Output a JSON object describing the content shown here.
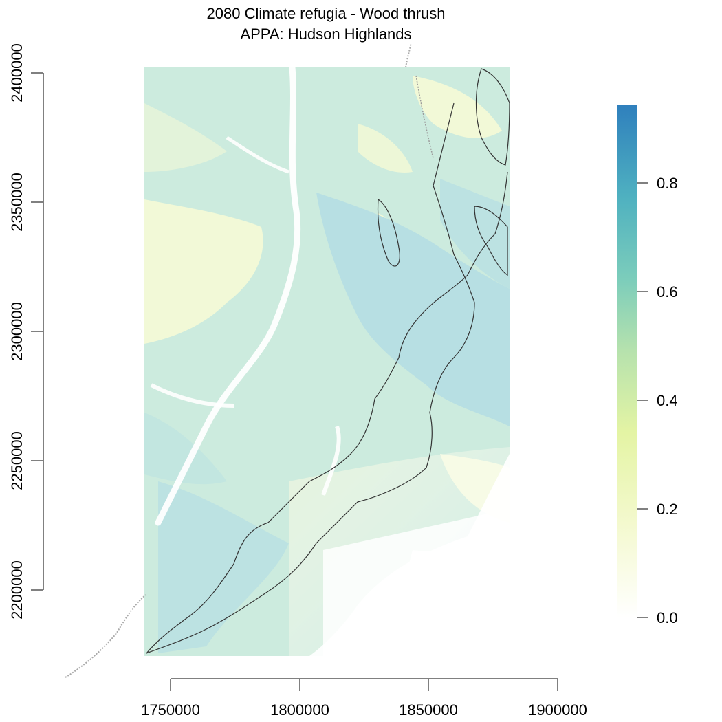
{
  "title": {
    "line1": "2080 Climate refugia - Wood thrush",
    "line2": "APPA: Hudson Highlands"
  },
  "map": {
    "x_axis": {
      "ticks": [
        "1750000",
        "1800000",
        "1850000",
        "1900000"
      ],
      "range": [
        1740000,
        1881000
      ]
    },
    "y_axis": {
      "ticks": [
        "2200000",
        "2250000",
        "2300000",
        "2350000",
        "2400000"
      ],
      "range": [
        2174000,
        2402000
      ]
    },
    "raster_layer": "climate refugia index",
    "overlays": [
      "APPA corridor boundary",
      "state boundary"
    ]
  },
  "legend": {
    "ticks": [
      "0.0",
      "0.2",
      "0.4",
      "0.6",
      "0.8"
    ],
    "range": [
      0.0,
      0.95
    ],
    "colors": [
      "#ffffff",
      "#f4f9cf",
      "#e7f5a6",
      "#b2e0ab",
      "#7ccdbb",
      "#41b6c4",
      "#2f80bd"
    ]
  }
}
